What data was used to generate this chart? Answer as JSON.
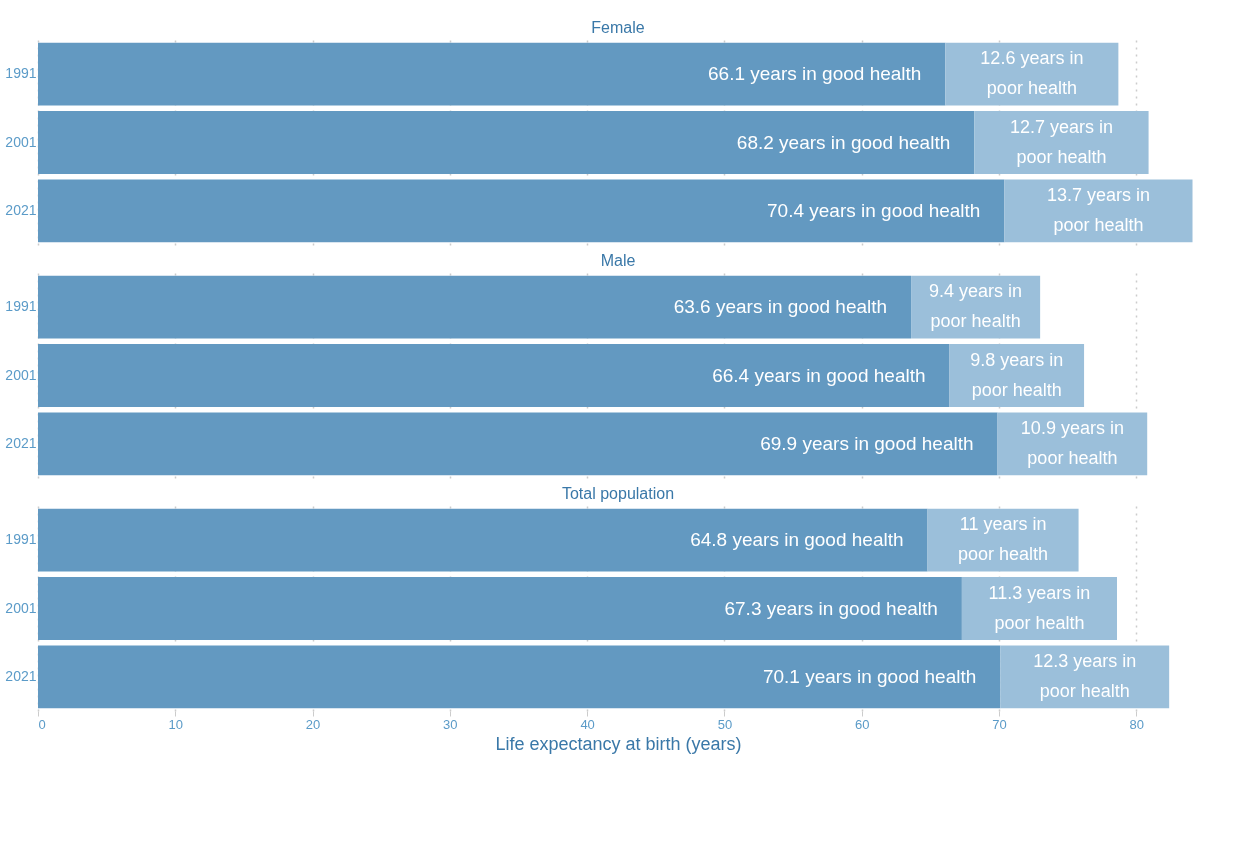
{
  "chart_data": [
    {
      "type": "bar",
      "orientation": "horizontal",
      "stacked": true,
      "title": "Female",
      "categories": [
        "1991",
        "2001",
        "2021"
      ],
      "series": [
        {
          "color": "#6399c1",
          "values": [
            66.1,
            68.2,
            70.4
          ],
          "value_labels": [
            "66.1 years in good health",
            "68.2 years in good health",
            "70.4 years in good health"
          ]
        },
        {
          "color": "#9bbfda",
          "values": [
            12.6,
            12.7,
            13.7
          ],
          "value_labels": [
            "12.6 years in\npoor health",
            "12.7 years in\npoor health",
            "13.7 years in\npoor health"
          ]
        }
      ],
      "xlim": [
        0,
        84.5
      ],
      "xticks": [
        0,
        10,
        20,
        30,
        40,
        50,
        60,
        70,
        80
      ],
      "grid": "x",
      "tick_labels": "y"
    },
    {
      "type": "bar",
      "orientation": "horizontal",
      "stacked": true,
      "title": "Male",
      "categories": [
        "1991",
        "2001",
        "2021"
      ],
      "series": [
        {
          "color": "#6399c1",
          "values": [
            63.6,
            66.4,
            69.9
          ],
          "value_labels": [
            "63.6 years in good health",
            "66.4 years in good health",
            "69.9 years in good health"
          ]
        },
        {
          "color": "#9bbfda",
          "values": [
            9.4,
            9.8,
            10.9
          ],
          "value_labels": [
            "9.4 years in\npoor health",
            "9.8 years in\npoor health",
            "10.9 years in\npoor health"
          ]
        }
      ],
      "xlim": [
        0,
        84.5
      ],
      "xticks": [
        0,
        10,
        20,
        30,
        40,
        50,
        60,
        70,
        80
      ],
      "grid": "x",
      "tick_labels": "y"
    },
    {
      "type": "bar",
      "orientation": "horizontal",
      "stacked": true,
      "title": "Total population",
      "xlabel": "Life expectancy at birth (years)",
      "categories": [
        "1991",
        "2001",
        "2021"
      ],
      "series": [
        {
          "color": "#6399c1",
          "values": [
            64.8,
            67.3,
            70.1
          ],
          "value_labels": [
            "64.8 years in good health",
            "67.3 years in good health",
            "70.1 years in good health"
          ]
        },
        {
          "color": "#9bbfda",
          "values": [
            11,
            11.3,
            12.3
          ],
          "value_labels": [
            "11 years in\npoor health",
            "11.3 years in\npoor health",
            "12.3 years in\npoor health"
          ]
        }
      ],
      "xlim": [
        0,
        84.5
      ],
      "xticks": [
        0,
        10,
        20,
        30,
        40,
        50,
        60,
        70,
        80
      ],
      "grid": "x"
    }
  ]
}
